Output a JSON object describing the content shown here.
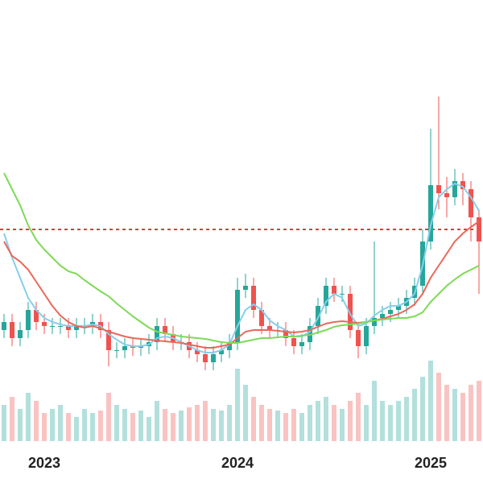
{
  "chart_data": {
    "type": "candlestick",
    "categories": [
      null,
      null,
      null,
      null,
      null,
      "2023",
      null,
      null,
      null,
      null,
      null,
      null,
      null,
      null,
      null,
      null,
      null,
      null,
      null,
      null,
      null,
      null,
      null,
      null,
      null,
      null,
      null,
      null,
      null,
      "2024",
      null,
      null,
      null,
      null,
      null,
      null,
      null,
      null,
      null,
      null,
      null,
      null,
      null,
      null,
      null,
      null,
      null,
      null,
      null,
      null,
      null,
      null,
      null,
      "2025",
      null,
      null,
      null,
      null,
      null,
      null
    ],
    "open": [
      30,
      32,
      28,
      30,
      35,
      32,
      31,
      31,
      31,
      30,
      31,
      31,
      32,
      30,
      25,
      25,
      26,
      25.6,
      26,
      27,
      31,
      29,
      27,
      27,
      25,
      24,
      22,
      24,
      25,
      27,
      40,
      41,
      35,
      31,
      30,
      30,
      28,
      26,
      27,
      31,
      36,
      41,
      39,
      39,
      30,
      26,
      31,
      33,
      34,
      35,
      36,
      38,
      41,
      52,
      66,
      64,
      63,
      67,
      65,
      58
    ],
    "high": [
      34,
      34,
      32,
      37,
      37,
      34,
      33,
      33,
      33,
      33,
      33,
      34,
      34,
      32,
      27,
      28,
      28,
      28,
      29,
      33,
      33,
      31,
      29,
      29,
      27,
      26,
      26,
      27,
      29,
      43,
      44,
      43,
      37,
      33,
      32,
      32,
      30,
      29,
      33,
      38,
      43,
      43,
      41,
      41,
      32,
      33,
      52,
      36,
      37,
      38,
      40,
      43,
      55,
      80,
      88,
      68,
      70,
      69,
      67,
      60
    ],
    "low": [
      28,
      26,
      26,
      28,
      30,
      29,
      29,
      29,
      28,
      28,
      29,
      29,
      28,
      21,
      23,
      23,
      23.6,
      23.6,
      24,
      25,
      27,
      25,
      25,
      23,
      22,
      20,
      20,
      22,
      23,
      25,
      38,
      33,
      29,
      28,
      28,
      26,
      24,
      24,
      25,
      29,
      34,
      37,
      37,
      28,
      23,
      24,
      29,
      31,
      32,
      33,
      34,
      36,
      39,
      50,
      60,
      58,
      61,
      61,
      52,
      39
    ],
    "close": [
      32,
      28,
      30,
      35,
      32,
      31,
      31,
      31,
      30,
      31,
      31,
      32,
      30,
      25,
      25,
      26,
      25.6,
      26,
      27,
      31,
      29,
      27,
      27,
      25,
      24,
      22,
      24,
      25,
      27,
      40,
      41,
      35,
      31,
      30,
      30,
      28,
      26,
      27,
      31,
      36,
      41,
      39,
      39,
      30,
      26,
      31,
      33,
      34,
      35,
      36,
      38,
      41,
      52,
      66,
      64,
      63,
      67,
      65,
      58,
      52
    ],
    "volume": [
      45,
      55,
      40,
      60,
      50,
      35,
      40,
      45,
      35,
      30,
      40,
      35,
      38,
      60,
      45,
      40,
      35,
      38,
      30,
      50,
      40,
      35,
      38,
      42,
      45,
      50,
      40,
      38,
      45,
      90,
      70,
      55,
      45,
      40,
      38,
      35,
      40,
      35,
      45,
      50,
      55,
      45,
      40,
      50,
      60,
      45,
      75,
      50,
      45,
      50,
      55,
      65,
      80,
      100,
      85,
      70,
      65,
      60,
      70,
      75
    ],
    "up_color": "#26a69a",
    "down_color": "#ef5350",
    "series": [
      {
        "color": "#87ceeb",
        "values": [
          54,
          48,
          43,
          38,
          35,
          33,
          32,
          31.4,
          31,
          31,
          31,
          31.4,
          31,
          29,
          27.6,
          26.4,
          26,
          26,
          26.4,
          28,
          28.4,
          28,
          27,
          26,
          25,
          24.4,
          24.4,
          25,
          26.4,
          31,
          35,
          36.4,
          35,
          32.4,
          31,
          30,
          28.4,
          28.4,
          29.6,
          33,
          37,
          39,
          38,
          34,
          31,
          31.6,
          33.6,
          35,
          36,
          36,
          37,
          39,
          46,
          56,
          63,
          65,
          66.4,
          65.6,
          63,
          59.6
        ]
      },
      {
        "color": "#e8685a",
        "values": [
          52,
          48.4,
          47,
          45,
          42,
          39,
          36,
          33.6,
          32,
          31,
          30.6,
          31,
          30.4,
          29.6,
          29,
          28.4,
          28,
          27.8,
          27.6,
          27.4,
          27.2,
          27,
          26.8,
          26.4,
          26,
          25.6,
          25.6,
          26,
          26.4,
          28,
          29.6,
          30,
          30,
          30,
          29.8,
          29.6,
          29.4,
          29.6,
          30,
          30.8,
          31.6,
          32,
          32.2,
          32,
          31.8,
          32,
          32.4,
          32.8,
          33.4,
          34,
          35,
          36.4,
          39,
          43,
          46,
          49,
          52,
          54,
          55.6,
          57
        ]
      },
      {
        "color": "#7ed957",
        "values": [
          69,
          65,
          61,
          56,
          52.4,
          50,
          48,
          46,
          44.6,
          44,
          42.4,
          41,
          39.6,
          38.4,
          36.6,
          35,
          33.4,
          32,
          30.6,
          29.6,
          29.2,
          28.8,
          28.4,
          28.2,
          28,
          27.8,
          27.4,
          27,
          26.8,
          26.8,
          27.2,
          27.6,
          28,
          28,
          28.2,
          28.4,
          28.4,
          28.6,
          28.8,
          29.4,
          30,
          30.8,
          31.2,
          31.4,
          31.6,
          32,
          32.4,
          32.6,
          32.8,
          33,
          33,
          33.4,
          34.4,
          37,
          39,
          41,
          42.6,
          44,
          45,
          46
        ]
      }
    ],
    "hline": 55,
    "hline_color": "#e03c3c",
    "ylim": [
      0,
      100
    ],
    "y2lim": [
      0,
      100
    ]
  }
}
